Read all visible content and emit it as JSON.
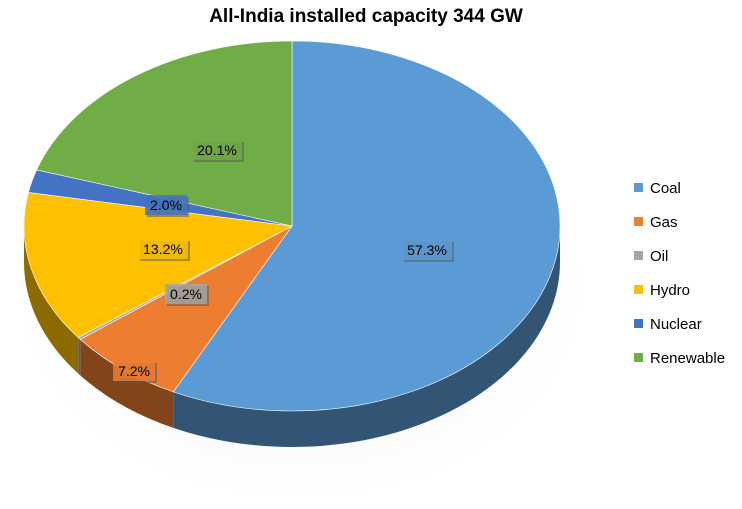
{
  "chart_data": {
    "type": "pie",
    "title": "All-India installed capacity 344 GW",
    "categories": [
      "Coal",
      "Gas",
      "Oil",
      "Hydro",
      "Nuclear",
      "Renewable"
    ],
    "values": [
      57.3,
      7.2,
      0.2,
      13.2,
      2.0,
      20.1
    ],
    "value_labels": [
      "57.3%",
      "7.2%",
      "0.2%",
      "13.2%",
      "2.0%",
      "20.1%"
    ],
    "colors": [
      "#5b9bd5",
      "#ed7d31",
      "#a5a5a5",
      "#ffc000",
      "#4472c4",
      "#70ad47"
    ],
    "legend_position": "right",
    "style": "3d"
  }
}
